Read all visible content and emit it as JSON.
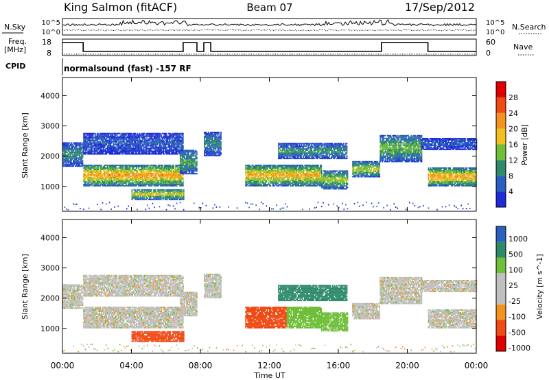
{
  "header": {
    "station": "King Salmon (fitACF)",
    "beam": "Beam 07",
    "date": "17/Sep/2012"
  },
  "noise_panel": {
    "left_label": "N.Sky",
    "right_label": "N.Search",
    "left_ticks": [
      "10^5",
      "10^0"
    ],
    "right_ticks": [
      "10^5",
      "10^0"
    ]
  },
  "freq_panel": {
    "left_label_1": "Freq.",
    "left_label_2": "[MHz]",
    "right_label": "Nave",
    "left_ticks": [
      "18",
      "8"
    ],
    "right_ticks": [
      "60",
      "0"
    ]
  },
  "cpid": {
    "label": "CPID",
    "text": "normalsound (fast) -157 RF"
  },
  "time_axis": {
    "label": "Time UT",
    "ticks": [
      "00:00",
      "04:00",
      "08:00",
      "12:00",
      "16:00",
      "20:00",
      "00:00"
    ]
  },
  "colors": {
    "power": [
      "#1f2bd8",
      "#2a60c0",
      "#2e8a6a",
      "#6fbf3a",
      "#f0c020",
      "#f3921f",
      "#f04a15",
      "#e00000"
    ],
    "velocity": [
      "#e00000",
      "#f04a15",
      "#f3921f",
      "#c0c0c0",
      "#c0c0c0",
      "#6fbf3a",
      "#2e8a6a",
      "#2a60c0"
    ]
  },
  "chart_data": [
    {
      "type": "heatmap",
      "title": "",
      "xlabel": "Time UT",
      "ylabel": "Slant Range [km]",
      "xlim": [
        0,
        24
      ],
      "ylim": [
        180,
        4600
      ],
      "yticks": [
        1000,
        2000,
        3000,
        4000
      ],
      "colorbar": {
        "label": "Power [dB]",
        "ticks": [
          "4",
          "8",
          "12",
          "16",
          "20",
          "24",
          "28"
        ],
        "range": [
          0,
          32
        ]
      },
      "bands": [
        {
          "t0": 0.0,
          "t1": 1.2,
          "r0": 1650,
          "r1": 2450,
          "level": 10
        },
        {
          "t0": 1.2,
          "t1": 7.0,
          "r0": 1000,
          "r1": 1700,
          "level": 22
        },
        {
          "t0": 1.2,
          "t1": 7.0,
          "r0": 2050,
          "r1": 2750,
          "level": 6
        },
        {
          "t0": 4.0,
          "t1": 7.0,
          "r0": 550,
          "r1": 900,
          "level": 18
        },
        {
          "t0": 6.8,
          "t1": 7.8,
          "r0": 1400,
          "r1": 2200,
          "level": 12
        },
        {
          "t0": 8.2,
          "t1": 9.2,
          "r0": 2000,
          "r1": 2800,
          "level": 10
        },
        {
          "t0": 10.6,
          "t1": 15.0,
          "r0": 1000,
          "r1": 1700,
          "level": 21
        },
        {
          "t0": 12.5,
          "t1": 16.5,
          "r0": 1900,
          "r1": 2400,
          "level": 11
        },
        {
          "t0": 15.0,
          "t1": 16.5,
          "r0": 900,
          "r1": 1500,
          "level": 16
        },
        {
          "t0": 16.8,
          "t1": 18.4,
          "r0": 1300,
          "r1": 1800,
          "level": 17
        },
        {
          "t0": 18.4,
          "t1": 20.8,
          "r0": 1800,
          "r1": 2700,
          "level": 14
        },
        {
          "t0": 21.2,
          "t1": 24.0,
          "r0": 1000,
          "r1": 1600,
          "level": 22
        },
        {
          "t0": 20.8,
          "t1": 24.0,
          "r0": 2200,
          "r1": 2600,
          "level": 6
        }
      ]
    },
    {
      "type": "heatmap",
      "title": "",
      "xlabel": "Time UT",
      "ylabel": "Slant Range [km]",
      "xlim": [
        0,
        24
      ],
      "ylim": [
        180,
        4600
      ],
      "yticks": [
        1000,
        2000,
        3000,
        4000
      ],
      "colorbar": {
        "label": "Velocity [m s^-1]",
        "ticks": [
          "1000",
          "500",
          "100",
          "25",
          "-25",
          "-100",
          "-500",
          "-1000"
        ],
        "range": [
          -1000,
          1000
        ]
      },
      "bands": [
        {
          "t0": 0.0,
          "t1": 1.2,
          "r0": 1650,
          "r1": 2450,
          "level": 0
        },
        {
          "t0": 1.2,
          "t1": 7.0,
          "r0": 1000,
          "r1": 1700,
          "level": 0
        },
        {
          "t0": 1.2,
          "t1": 7.0,
          "r0": 2050,
          "r1": 2750,
          "level": 0
        },
        {
          "t0": 4.0,
          "t1": 7.0,
          "r0": 550,
          "r1": 900,
          "level": -150
        },
        {
          "t0": 6.8,
          "t1": 7.8,
          "r0": 1400,
          "r1": 2200,
          "level": 0
        },
        {
          "t0": 8.2,
          "t1": 9.2,
          "r0": 2000,
          "r1": 2800,
          "level": 0
        },
        {
          "t0": 10.6,
          "t1": 13.0,
          "r0": 1000,
          "r1": 1700,
          "level": -150
        },
        {
          "t0": 13.0,
          "t1": 15.0,
          "r0": 1000,
          "r1": 1700,
          "level": 60
        },
        {
          "t0": 12.5,
          "t1": 16.5,
          "r0": 1900,
          "r1": 2400,
          "level": 300
        },
        {
          "t0": 15.0,
          "t1": 16.5,
          "r0": 900,
          "r1": 1500,
          "level": 60
        },
        {
          "t0": 16.8,
          "t1": 18.4,
          "r0": 1300,
          "r1": 1800,
          "level": 0
        },
        {
          "t0": 18.4,
          "t1": 20.8,
          "r0": 1800,
          "r1": 2700,
          "level": 0
        },
        {
          "t0": 21.2,
          "t1": 24.0,
          "r0": 1000,
          "r1": 1600,
          "level": 0
        },
        {
          "t0": 20.8,
          "t1": 24.0,
          "r0": 2200,
          "r1": 2600,
          "level": 0
        }
      ]
    }
  ]
}
